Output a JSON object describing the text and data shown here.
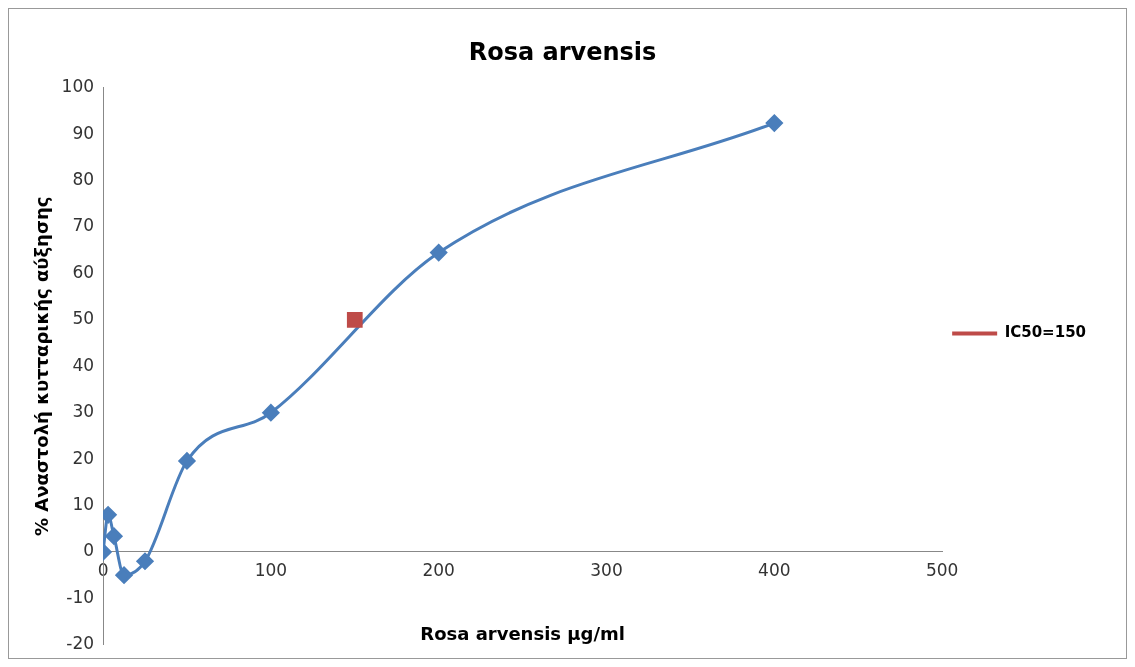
{
  "chart_data": {
    "type": "line",
    "title": "Rosa arvensis",
    "xlabel": "Rosa arvensis μg/ml",
    "ylabel": "% Αναστολή κυτταρικής αύξησης",
    "xlim": [
      0,
      500
    ],
    "xticks": [
      0,
      100,
      200,
      300,
      400,
      500
    ],
    "ylim": [
      -20,
      100
    ],
    "yticks": [
      -20,
      -10,
      0,
      10,
      20,
      30,
      40,
      50,
      60,
      70,
      80,
      90,
      100
    ],
    "grid": false,
    "legend": "right",
    "marker": "diamond",
    "line_style": "solid",
    "series": [
      {
        "color": "#4a7ebb",
        "x": [
          0,
          3,
          6.5,
          12.5,
          25,
          50,
          100,
          150,
          200,
          400
        ],
        "values": [
          0,
          8,
          3.4,
          -5,
          -2,
          19.6,
          30,
          null,
          64.5,
          92.4
        ]
      },
      {
        "name": "IC50=150",
        "type": "scatter",
        "marker": "square",
        "color": "#be4b48",
        "x": [
          150
        ],
        "values": [
          50
        ]
      }
    ]
  }
}
